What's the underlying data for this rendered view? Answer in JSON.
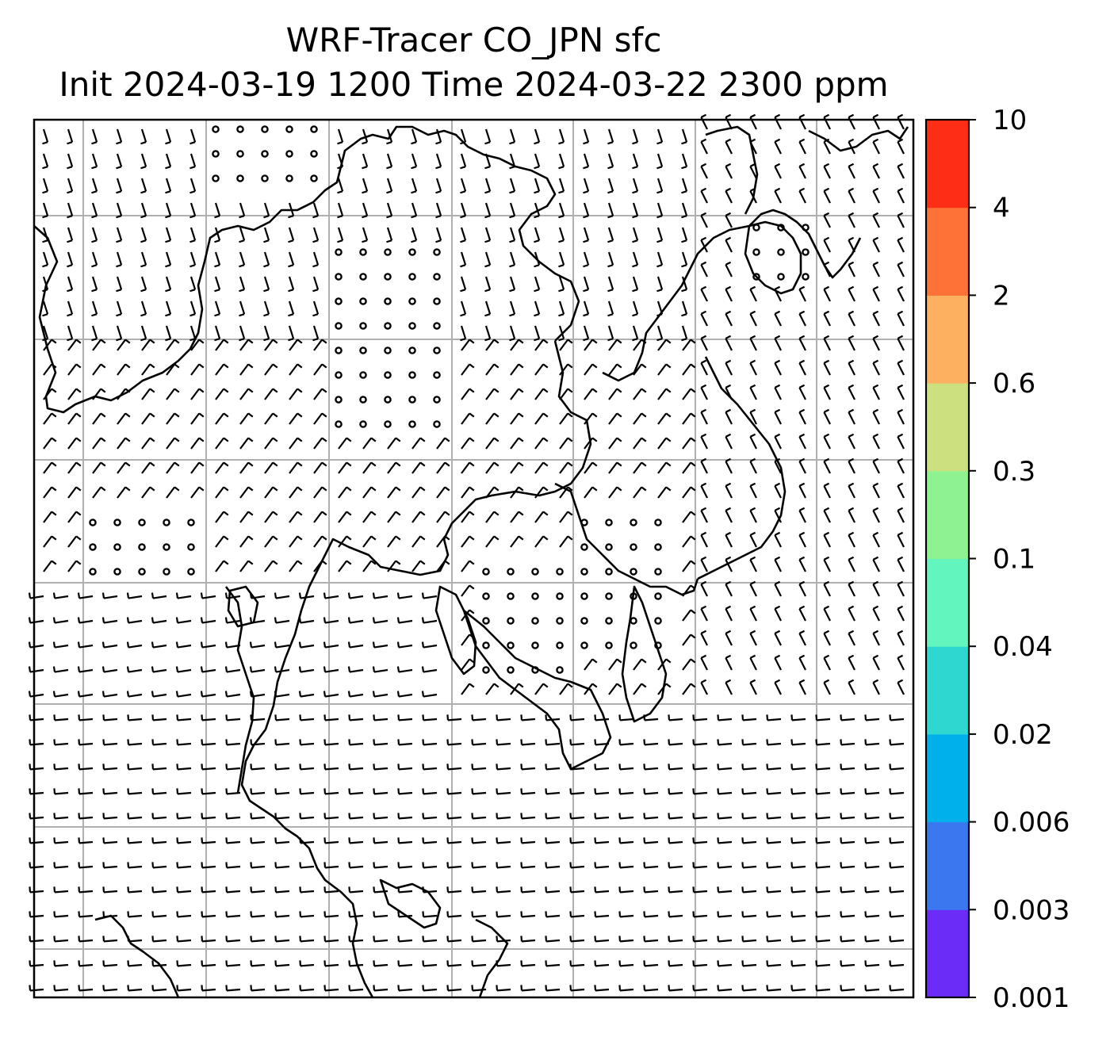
{
  "title": {
    "line1": "WRF-Tracer CO_JPN sfc",
    "line2": "Init 2024-03-19 1200 Time 2024-03-22 2300 ppm"
  },
  "colorbar": {
    "unit": "ppm",
    "levels": [
      "0.001",
      "0.003",
      "0.006",
      "0.02",
      "0.04",
      "0.1",
      "0.3",
      "0.6",
      "2",
      "4",
      "10"
    ],
    "colors": [
      "#6a2cf6",
      "#3a78f0",
      "#00b0ea",
      "#2ed8d0",
      "#62f6be",
      "#8ef290",
      "#cde080",
      "#fcb060",
      "#fe7238",
      "#fe2e16"
    ]
  },
  "map": {
    "background": "#ffffff",
    "gridline_color": "#b0b0b0",
    "coastline_color": "#000000",
    "barb_color": "#000000",
    "wind_barbs": "surface wind barbs with calm-wind circles",
    "tracer_field": "no shaded CO_JPN concentration visible at plotted levels"
  }
}
